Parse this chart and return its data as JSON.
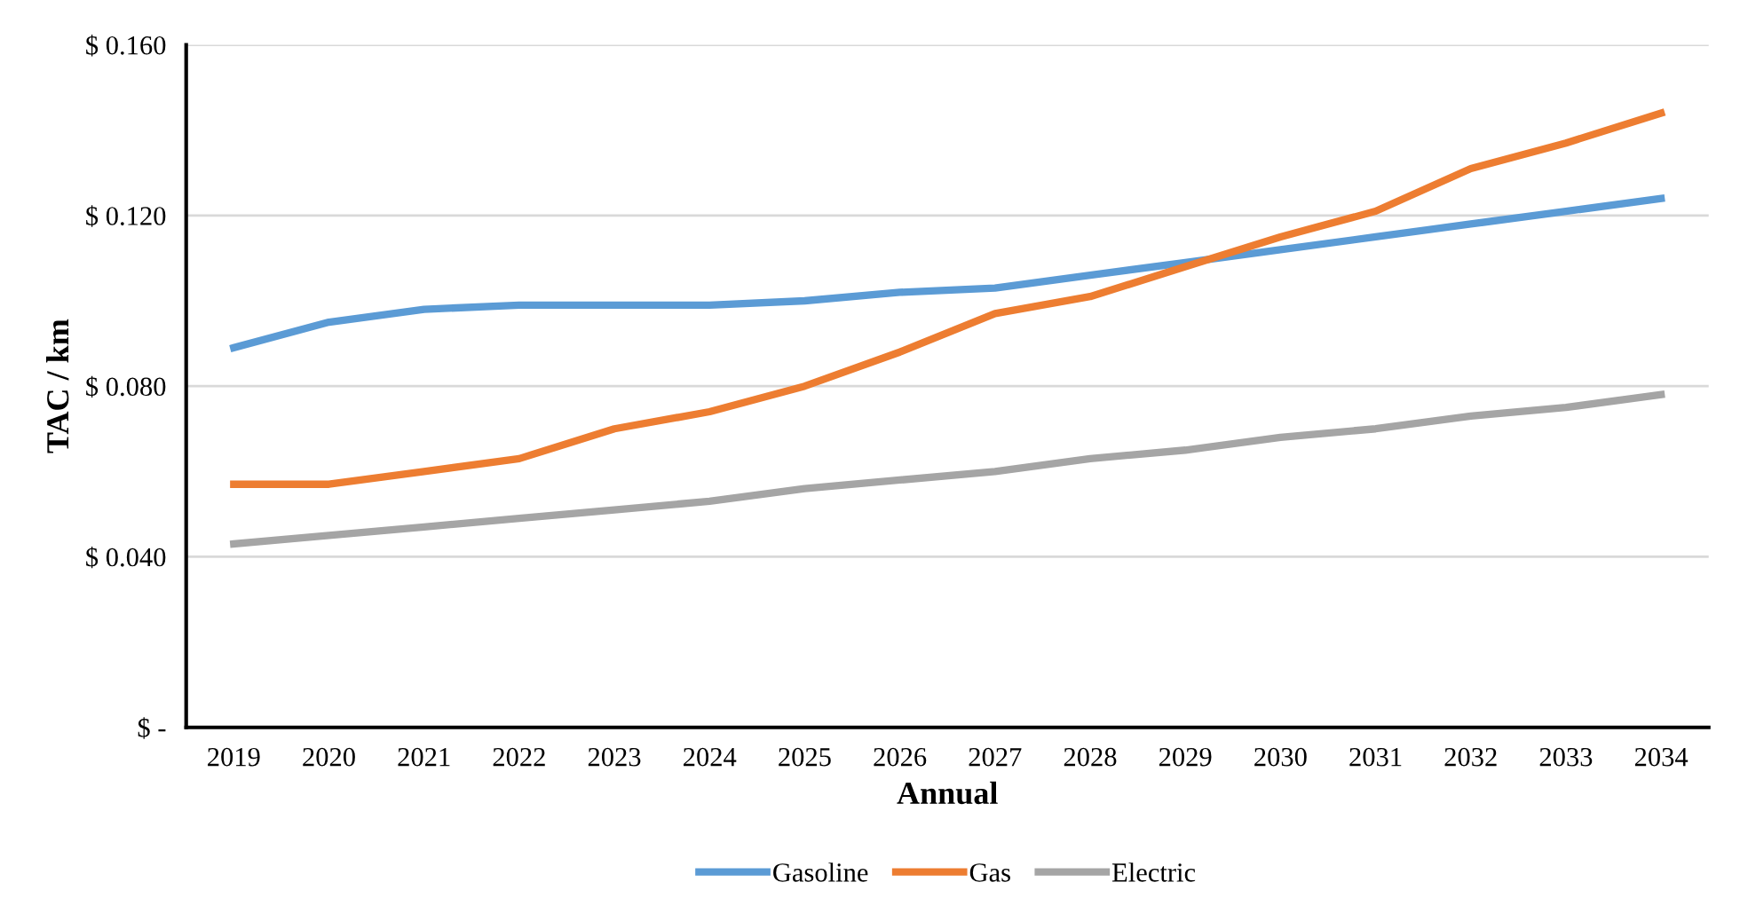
{
  "chart_data": {
    "type": "line",
    "xlabel": "Annual",
    "ylabel": "TAC / km",
    "categories": [
      "2019",
      "2020",
      "2021",
      "2022",
      "2023",
      "2024",
      "2025",
      "2026",
      "2027",
      "2028",
      "2029",
      "2030",
      "2031",
      "2032",
      "2033",
      "2034"
    ],
    "series": [
      {
        "name": "Gasoline",
        "color": "#5b9bd5",
        "values": [
          0.089,
          0.095,
          0.098,
          0.099,
          0.099,
          0.099,
          0.1,
          0.102,
          0.103,
          0.106,
          0.109,
          0.112,
          0.115,
          0.118,
          0.121,
          0.124
        ]
      },
      {
        "name": "Gas",
        "color": "#ed7d31",
        "values": [
          0.057,
          0.057,
          0.06,
          0.063,
          0.07,
          0.074,
          0.08,
          0.088,
          0.097,
          0.101,
          0.108,
          0.115,
          0.121,
          0.131,
          0.137,
          0.144
        ]
      },
      {
        "name": "Electric",
        "color": "#a5a5a5",
        "values": [
          0.043,
          0.045,
          0.047,
          0.049,
          0.051,
          0.053,
          0.056,
          0.058,
          0.06,
          0.063,
          0.065,
          0.068,
          0.07,
          0.073,
          0.075,
          0.078
        ]
      }
    ],
    "ylim": [
      0,
      0.16
    ],
    "yticks": [
      {
        "value": 0,
        "label": "$ -"
      },
      {
        "value": 0.04,
        "label": "$ 0.040"
      },
      {
        "value": 0.08,
        "label": "$ 0.080"
      },
      {
        "value": 0.12,
        "label": "$ 0.120"
      },
      {
        "value": 0.16,
        "label": "$ 0.160"
      }
    ],
    "grid": "y",
    "legend": "bottom",
    "marker": "none",
    "line_style": "solid"
  }
}
